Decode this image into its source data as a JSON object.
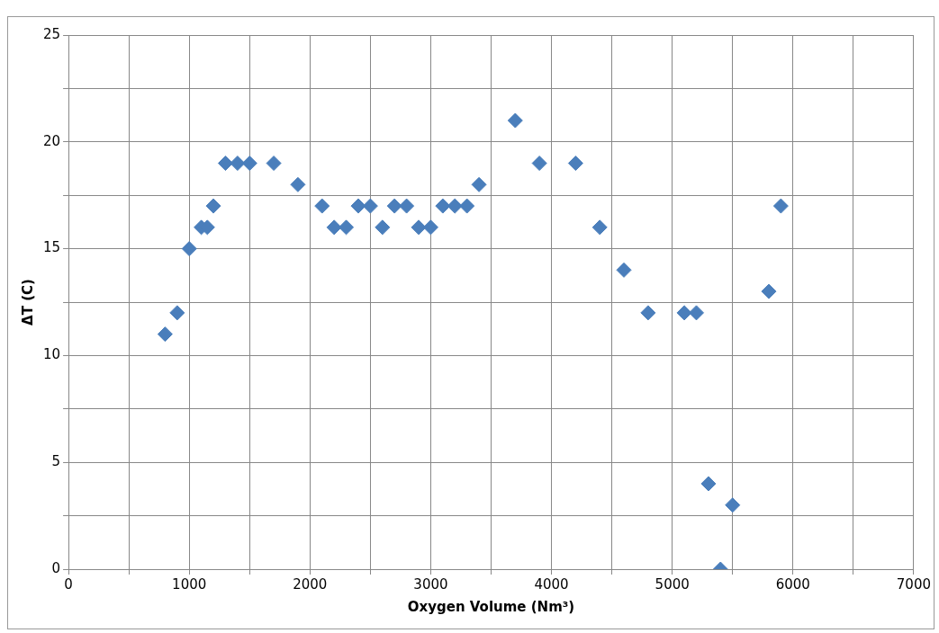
{
  "chart_data": {
    "type": "scatter",
    "xlabel": "Oxygen Volume (Nm³)",
    "ylabel": "ΔT (C)",
    "x": [
      800,
      900,
      1000,
      1100,
      1150,
      1200,
      1300,
      1400,
      1500,
      1700,
      1900,
      2100,
      2200,
      2300,
      2400,
      2500,
      2600,
      2700,
      2800,
      2900,
      3000,
      3100,
      3200,
      3300,
      3400,
      3700,
      3900,
      4200,
      4400,
      4600,
      4800,
      5100,
      5200,
      5300,
      5400,
      5500,
      5800,
      5900
    ],
    "series": [
      {
        "color": "#4a7ebb",
        "values": [
          11,
          12,
          15,
          16,
          16,
          17,
          19,
          19,
          19,
          19,
          18,
          17,
          16,
          16,
          17,
          17,
          16,
          17,
          17,
          16,
          16,
          17,
          17,
          17,
          18,
          21,
          19,
          19,
          16,
          14,
          12,
          12,
          12,
          4,
          0,
          3,
          13,
          17
        ]
      }
    ],
    "xlim": [
      0,
      7000
    ],
    "xticks": [
      0,
      {
        "value": 500,
        "label": null
      },
      1000,
      {
        "value": 1500,
        "label": null
      },
      2000,
      {
        "value": 2500,
        "label": null
      },
      3000,
      {
        "value": 3500,
        "label": null
      },
      4000,
      {
        "value": 4500,
        "label": null
      },
      5000,
      {
        "value": 5500,
        "label": null
      },
      6000,
      {
        "value": 6500,
        "label": null
      },
      7000
    ],
    "ylim": [
      0,
      25
    ],
    "yticks": [
      0,
      {
        "value": 2.5,
        "label": null
      },
      5,
      {
        "value": 7.5,
        "label": null
      },
      10,
      {
        "value": 12.5,
        "label": null
      },
      15,
      {
        "value": 17.5,
        "label": null
      },
      20,
      {
        "value": 22.5,
        "label": null
      },
      25
    ],
    "grid": true,
    "legend": false,
    "marker": "diamond"
  }
}
